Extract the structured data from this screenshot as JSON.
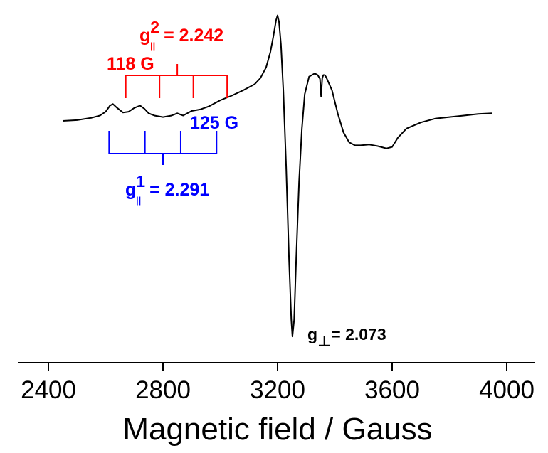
{
  "chart_data": {
    "type": "line",
    "title": "",
    "xlabel": "Magnetic field / Gauss",
    "ylabel": "",
    "xlim": [
      2250,
      4100
    ],
    "xticks": [
      2400,
      2800,
      3200,
      3600,
      4000
    ],
    "xtick_labels": [
      "2400",
      "2800",
      "3200",
      "3600",
      "4000"
    ],
    "yaxis_visible": false,
    "grid": false,
    "series": [
      {
        "color": "#000000",
        "x": [
          2450,
          2500,
          2550,
          2580,
          2600,
          2615,
          2625,
          2640,
          2660,
          2680,
          2700,
          2720,
          2735,
          2750,
          2770,
          2800,
          2830,
          2850,
          2870,
          2900,
          2930,
          2960,
          3000,
          3040,
          3080,
          3120,
          3140,
          3160,
          3175,
          3185,
          3195,
          3200,
          3205,
          3212,
          3220,
          3230,
          3240,
          3248,
          3252,
          3258,
          3265,
          3275,
          3285,
          3295,
          3310,
          3330,
          3340,
          3348,
          3352,
          3356,
          3360,
          3365,
          3370,
          3390,
          3410,
          3430,
          3450,
          3470,
          3490,
          3520,
          3550,
          3580,
          3600,
          3620,
          3650,
          3700,
          3750,
          3800,
          3850,
          3900,
          3950
        ],
        "y": [
          0.0,
          0.01,
          0.04,
          0.07,
          0.12,
          0.2,
          0.22,
          0.17,
          0.11,
          0.12,
          0.17,
          0.2,
          0.16,
          0.1,
          0.07,
          0.05,
          0.07,
          0.1,
          0.07,
          0.13,
          0.15,
          0.19,
          0.27,
          0.33,
          0.4,
          0.48,
          0.56,
          0.7,
          0.9,
          1.1,
          1.32,
          1.38,
          1.3,
          1.0,
          0.4,
          -0.6,
          -1.8,
          -2.6,
          -2.82,
          -2.6,
          -1.8,
          -0.8,
          -0.1,
          0.35,
          0.58,
          0.62,
          0.6,
          0.55,
          0.32,
          0.56,
          0.6,
          0.6,
          0.57,
          0.4,
          0.1,
          -0.15,
          -0.28,
          -0.32,
          -0.32,
          -0.31,
          -0.33,
          -0.36,
          -0.34,
          -0.22,
          -0.1,
          -0.02,
          0.03,
          0.05,
          0.07,
          0.09,
          0.1
        ]
      }
    ],
    "annotations": [
      {
        "group": "red",
        "color": "#ff0000",
        "label": "g",
        "sup": "2",
        "sub": "||",
        "value": "= 2.242",
        "spacing": "118 G",
        "center": 2850,
        "lines": [
          2670,
          2788,
          2906,
          3024
        ]
      },
      {
        "group": "blue",
        "color": "#0000ff",
        "label": "g",
        "sup": "1",
        "sub": "||",
        "value": "= 2.291",
        "spacing": "125 G",
        "center": 2800,
        "lines": [
          2612,
          2737,
          2862,
          2987
        ]
      },
      {
        "group": "black",
        "color": "#000000",
        "label": "g",
        "sub": "⊥",
        "value": "= 2.073",
        "at": 3248
      }
    ]
  }
}
